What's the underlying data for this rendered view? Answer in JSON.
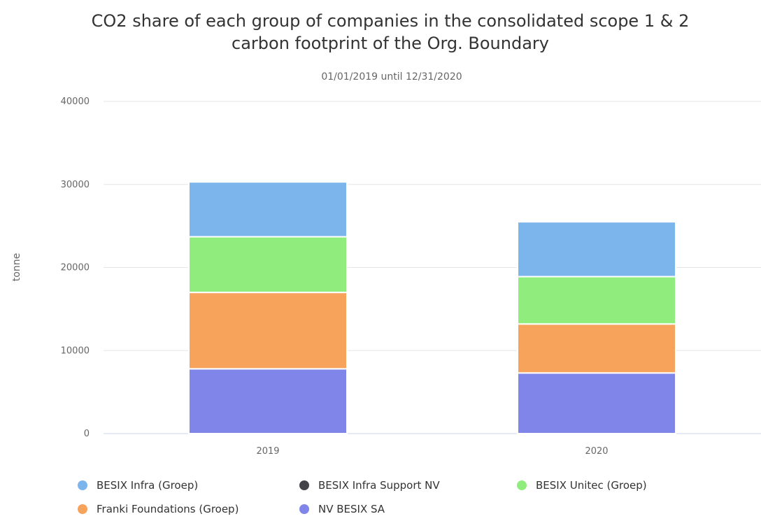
{
  "chart_data": {
    "type": "bar",
    "stacked": true,
    "title_lines": [
      "CO2 share of each group of companies in the consolidated scope 1 & 2",
      "carbon footprint of the Org. Boundary"
    ],
    "subtitle": "01/01/2019 until 12/31/2020",
    "ylabel": "tonne",
    "xlabel": "",
    "ylim": [
      0,
      40000
    ],
    "yticks": [
      "0",
      "10000",
      "20000",
      "30000",
      "40000"
    ],
    "categories": [
      "2019",
      "2020"
    ],
    "legend_position": "bottom",
    "grid": true,
    "series": [
      {
        "name": "NV BESIX SA",
        "color": "#8085e9",
        "values": [
          7800,
          7300
        ]
      },
      {
        "name": "Franki Foundations (Groep)",
        "color": "#f7a35c",
        "values": [
          9200,
          5900
        ]
      },
      {
        "name": "BESIX Unitec (Groep)",
        "color": "#90ed7d",
        "values": [
          6700,
          5700
        ]
      },
      {
        "name": "BESIX Infra Support NV",
        "color": "#434348",
        "values": [
          0,
          0
        ]
      },
      {
        "name": "BESIX Infra (Groep)",
        "color": "#7cb5ec",
        "values": [
          6600,
          6600
        ]
      }
    ],
    "legend_order": [
      "BESIX Infra (Groep)",
      "BESIX Infra Support NV",
      "BESIX Unitec (Groep)",
      "Franki Foundations (Groep)",
      "NV BESIX SA"
    ]
  }
}
